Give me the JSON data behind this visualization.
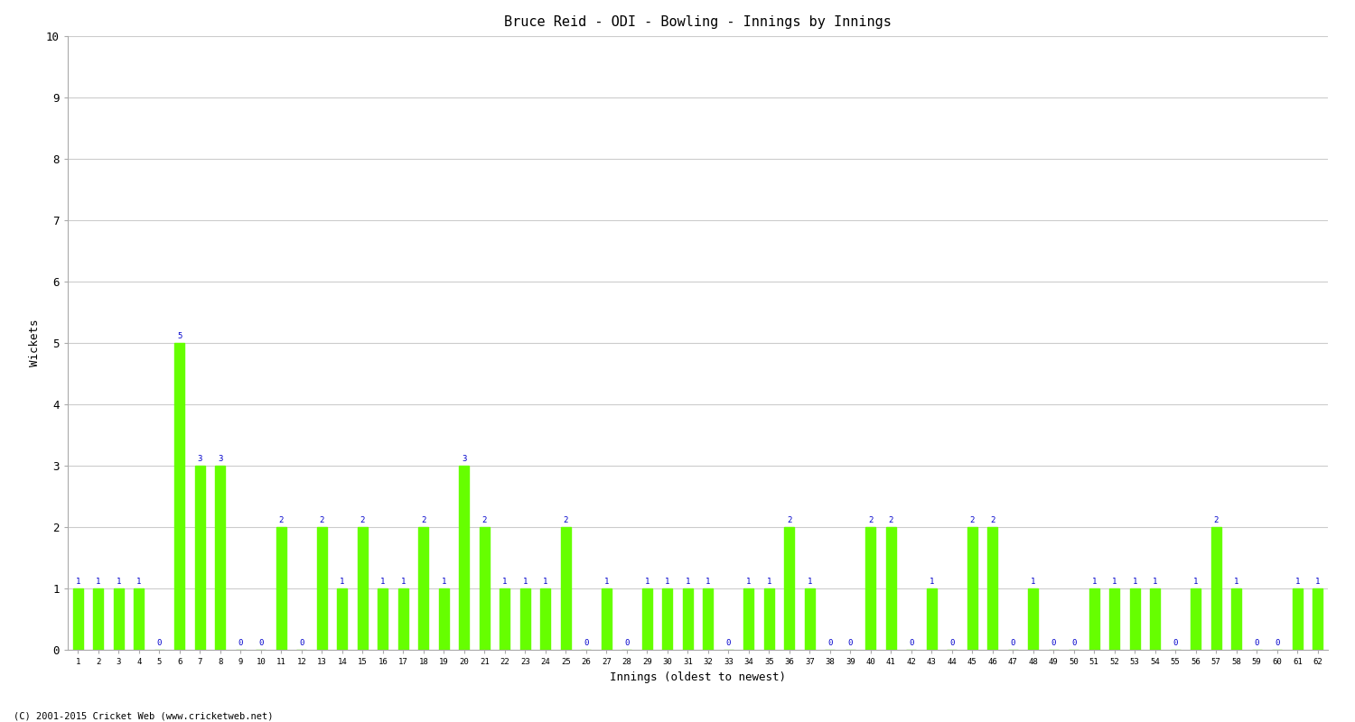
{
  "title": "Bruce Reid - ODI - Bowling - Innings by Innings",
  "xlabel": "Innings (oldest to newest)",
  "ylabel": "Wickets",
  "ylim": [
    0,
    10
  ],
  "yticks": [
    0,
    1,
    2,
    3,
    4,
    5,
    6,
    7,
    8,
    9,
    10
  ],
  "bar_color": "#66FF00",
  "label_color": "#0000CC",
  "background_color": "#FFFFFF",
  "grid_color": "#CCCCCC",
  "footer": "(C) 2001-2015 Cricket Web (www.cricketweb.net)",
  "innings_labels": [
    "1",
    "2",
    "3",
    "4",
    "5",
    "6",
    "7",
    "8",
    "9",
    "10",
    "11",
    "12",
    "13",
    "14",
    "15",
    "16",
    "17",
    "18",
    "19",
    "20",
    "21",
    "22",
    "23",
    "24",
    "25",
    "26",
    "27",
    "28",
    "29",
    "30",
    "31",
    "32",
    "33",
    "34",
    "35",
    "36",
    "37",
    "38",
    "39",
    "40",
    "41",
    "42",
    "43",
    "44",
    "45",
    "46",
    "47",
    "48",
    "49",
    "50",
    "51",
    "52",
    "53",
    "54",
    "55",
    "56",
    "57",
    "58",
    "59",
    "60",
    "61",
    "62"
  ],
  "wickets": [
    1,
    1,
    1,
    1,
    0,
    5,
    3,
    3,
    0,
    0,
    2,
    0,
    2,
    1,
    2,
    1,
    1,
    2,
    1,
    3,
    2,
    1,
    1,
    1,
    2,
    0,
    1,
    0,
    1,
    1,
    1,
    1,
    0,
    1,
    1,
    2,
    1,
    0,
    0,
    2,
    2,
    0,
    1,
    0,
    2,
    2,
    0,
    1,
    0,
    0,
    1,
    1,
    1,
    1,
    0,
    1,
    2,
    1,
    0,
    0,
    1,
    1
  ]
}
